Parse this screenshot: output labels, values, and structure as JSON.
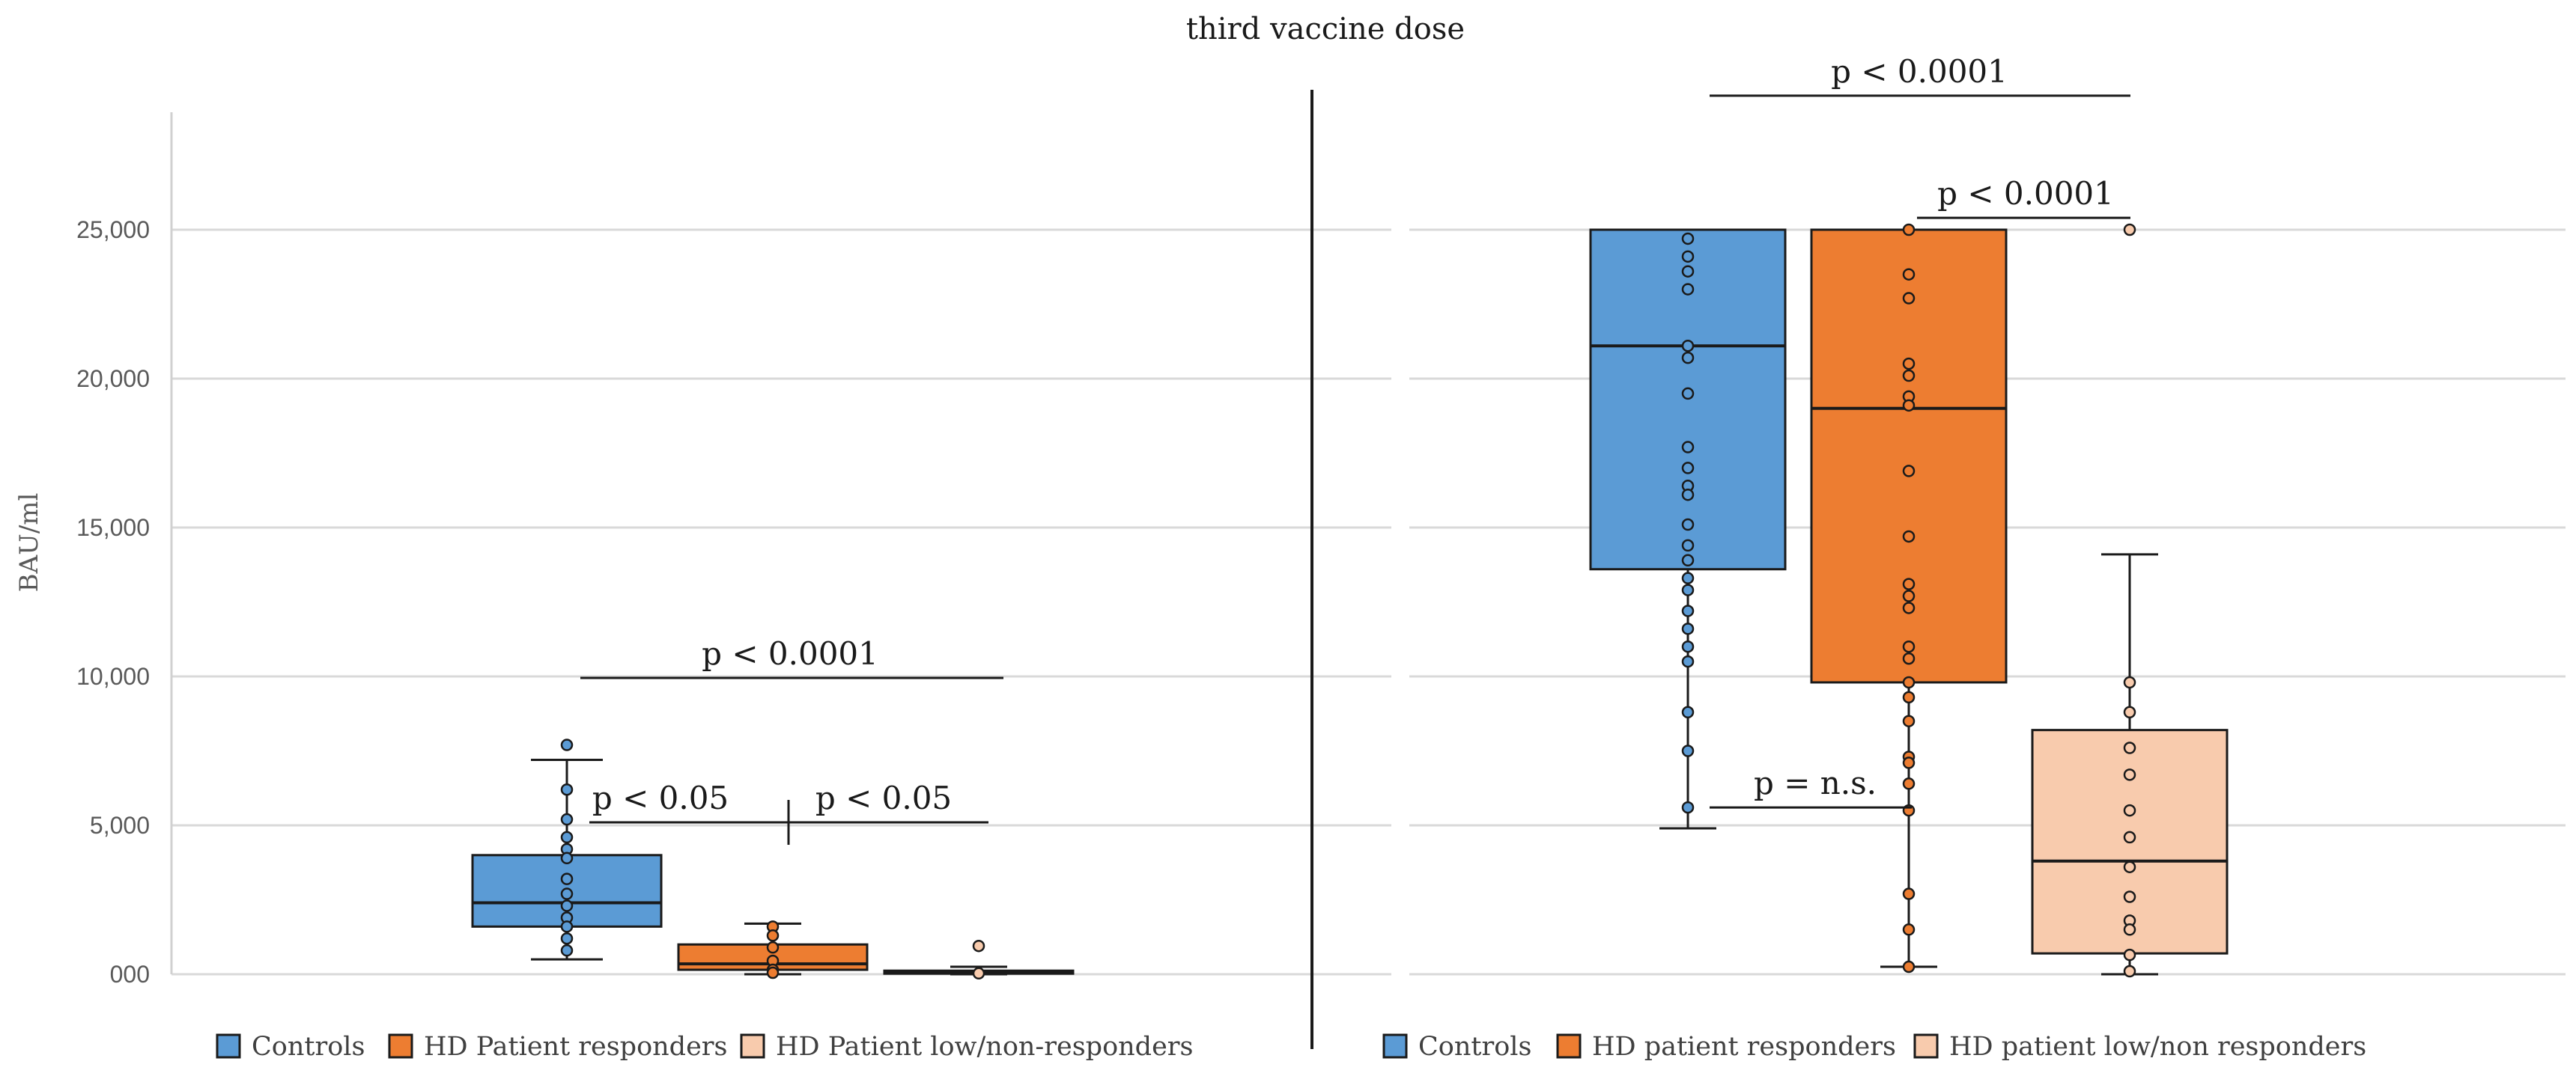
{
  "chart_data": {
    "type": "box",
    "title": "third vaccine dose",
    "ylabel": "BAU/ml",
    "ylim": [
      0,
      29000
    ],
    "yticks": [
      0,
      5000,
      10000,
      15000,
      20000,
      25000
    ],
    "yticklabels": [
      "000",
      "5,000",
      "10,000",
      "15,000",
      "20,000",
      "25,000"
    ],
    "grid": true,
    "colors": {
      "controls": "#5b9bd5",
      "responders": "#ed7d31",
      "low": "#f8cbad"
    },
    "panels": [
      {
        "name": "left",
        "legend": [
          "Controls",
          "HD Patient responders",
          "HD Patient low/non-responders"
        ],
        "boxes": [
          {
            "group": "controls",
            "min": 500,
            "q1": 1600,
            "median": 2400,
            "q3": 4000,
            "max": 7200,
            "points": [
              7700,
              6200,
              5200,
              4600,
              4200,
              3900,
              3200,
              2700,
              2300,
              1900,
              1600,
              1200,
              800
            ]
          },
          {
            "group": "responders",
            "min": 0,
            "q1": 150,
            "median": 350,
            "q3": 1000,
            "max": 1700,
            "points": [
              1600,
              1300,
              900,
              450,
              150,
              50
            ]
          },
          {
            "group": "low",
            "min": 0,
            "q1": 20,
            "median": 60,
            "q3": 120,
            "max": 250,
            "points": [
              950,
              30
            ]
          }
        ],
        "annotations": [
          {
            "text": "p < 0.0001",
            "y": 9950
          },
          {
            "text": "p < 0.05",
            "y": 5100
          },
          {
            "text": "p < 0.05",
            "y": 5100
          }
        ]
      },
      {
        "name": "right",
        "legend": [
          "Controls",
          "HD patient responders",
          "HD patient low/non responders"
        ],
        "boxes": [
          {
            "group": "controls",
            "min": 4900,
            "q1": 13600,
            "median": 21100,
            "q3": 25000,
            "max": 25000,
            "points": [
              24700,
              24100,
              23600,
              23000,
              21100,
              20700,
              19500,
              17700,
              17000,
              16400,
              16100,
              15100,
              14400,
              13900,
              13300,
              12900,
              12200,
              11600,
              11000,
              10500,
              8800,
              7500,
              5600
            ]
          },
          {
            "group": "responders",
            "min": 250,
            "q1": 9800,
            "median": 19000,
            "q3": 25000,
            "max": 25000,
            "points": [
              25000,
              23500,
              22700,
              20500,
              20100,
              19400,
              19100,
              16900,
              14700,
              13100,
              12700,
              12300,
              11000,
              10600,
              9800,
              9300,
              8500,
              7300,
              7100,
              6400,
              5500,
              2700,
              1500,
              250
            ]
          },
          {
            "group": "low",
            "min": 0,
            "q1": 700,
            "median": 3800,
            "q3": 8200,
            "max": 14100,
            "points": [
              25000,
              9800,
              8800,
              7600,
              6700,
              5500,
              4600,
              3600,
              2600,
              1800,
              1500,
              650,
              100
            ]
          }
        ],
        "annotations": [
          {
            "text": "p < 0.0001",
            "y": 29500
          },
          {
            "text": "p < 0.0001",
            "y": 25400
          },
          {
            "text": "p = n.s.",
            "y": 5600
          }
        ]
      }
    ]
  }
}
